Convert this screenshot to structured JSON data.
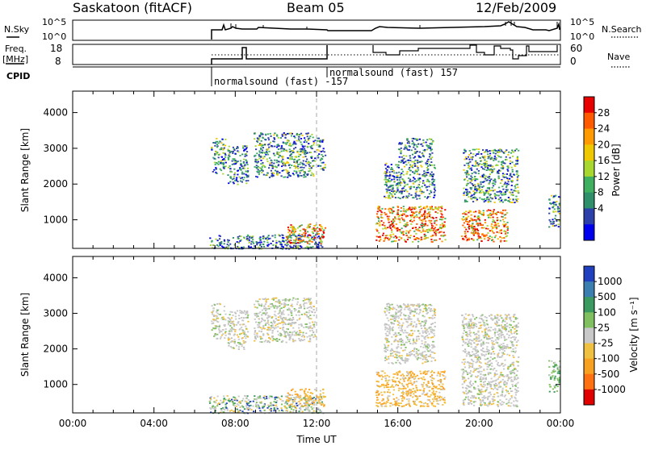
{
  "header": {
    "station": "Saskatoon (fitACF)",
    "beam": "Beam 05",
    "date": "12/Feb/2009"
  },
  "status_panels": {
    "noise": {
      "left_label": "N.Sky",
      "left_ticks": [
        "10^5",
        "10^0"
      ],
      "right_label": "N.Search",
      "right_ticks": [
        "10^5",
        "10^0"
      ]
    },
    "freq": {
      "left_label_1": "Freq.",
      "left_label_2": "[MHz]",
      "left_ticks": [
        "18",
        "8"
      ],
      "right_label": "Nave",
      "right_ticks": [
        "60",
        "0"
      ]
    },
    "cpid": {
      "label": "CPID",
      "entries": [
        {
          "time": 6.75,
          "text": "normalsound (fast) -157"
        },
        {
          "time": 12.25,
          "text": "normalsound (fast) 157"
        }
      ]
    }
  },
  "chart_data": [
    {
      "type": "heatmap",
      "name": "power",
      "ylabel": "Slant Range [km]",
      "ylim": [
        200,
        4600
      ],
      "yticks": [
        1000,
        2000,
        3000,
        4000
      ],
      "xlim": [
        0,
        24
      ],
      "colorbar": {
        "title": "Power [dB]",
        "labels": [
          "28",
          "24",
          "20",
          "16",
          "12",
          "8",
          "4"
        ],
        "colors": [
          "#e80000",
          "#ff5a00",
          "#ff9a00",
          "#f0c800",
          "#a8d830",
          "#3fb060",
          "#2f8f6a",
          "#2d3fa8",
          "#0000ee"
        ]
      },
      "scatter_regions": [
        {
          "t0": 6.8,
          "t1": 7.5,
          "r0": 2300,
          "r1": 3300,
          "palette": "power-mid"
        },
        {
          "t0": 7.6,
          "t1": 8.6,
          "r0": 2000,
          "r1": 3100,
          "palette": "power-low"
        },
        {
          "t0": 8.9,
          "t1": 11.9,
          "r0": 2200,
          "r1": 3450,
          "palette": "power-mid"
        },
        {
          "t0": 12.0,
          "t1": 12.4,
          "r0": 2400,
          "r1": 3300,
          "palette": "power-mid"
        },
        {
          "t0": 6.7,
          "t1": 12.3,
          "r0": 200,
          "r1": 600,
          "palette": "power-low"
        },
        {
          "t0": 10.5,
          "t1": 12.4,
          "r0": 350,
          "r1": 900,
          "palette": "power-hot"
        },
        {
          "t0": 14.9,
          "t1": 18.3,
          "r0": 400,
          "r1": 1400,
          "palette": "power-hot"
        },
        {
          "t0": 15.3,
          "t1": 17.8,
          "r0": 1600,
          "r1": 2600,
          "palette": "power-mid"
        },
        {
          "t0": 16.0,
          "t1": 17.7,
          "r0": 2600,
          "r1": 3300,
          "palette": "power-low"
        },
        {
          "t0": 19.1,
          "t1": 21.4,
          "r0": 400,
          "r1": 1300,
          "palette": "power-hot"
        },
        {
          "t0": 19.2,
          "t1": 21.9,
          "r0": 1500,
          "r1": 3000,
          "palette": "power-mid"
        },
        {
          "t0": 23.4,
          "t1": 23.95,
          "r0": 800,
          "r1": 1700,
          "palette": "power-mid"
        }
      ]
    },
    {
      "type": "heatmap",
      "name": "velocity",
      "ylabel": "Slant Range [km]",
      "ylim": [
        200,
        4600
      ],
      "yticks": [
        1000,
        2000,
        3000,
        4000
      ],
      "xlim": [
        0,
        24
      ],
      "xticks": [
        "00:00",
        "04:00",
        "08:00",
        "12:00",
        "16:00",
        "20:00",
        "00:00"
      ],
      "xlabel": "Time UT",
      "colorbar": {
        "title": "Velocity [m s⁻¹]",
        "labels": [
          "1000",
          "500",
          "100",
          "25",
          "-25",
          "-100",
          "-500",
          "-1000"
        ],
        "colors": [
          "#2040c0",
          "#3a7fb0",
          "#3a9a60",
          "#80c060",
          "#c8c8c8",
          "#f0c040",
          "#f8a020",
          "#ff7010",
          "#e00000"
        ]
      },
      "scatter_regions": [
        {
          "t0": 6.8,
          "t1": 7.5,
          "r0": 2300,
          "r1": 3300,
          "palette": "vel-grey"
        },
        {
          "t0": 7.6,
          "t1": 8.6,
          "r0": 2000,
          "r1": 3100,
          "palette": "vel-grey"
        },
        {
          "t0": 8.9,
          "t1": 11.9,
          "r0": 2200,
          "r1": 3450,
          "palette": "vel-grey"
        },
        {
          "t0": 6.7,
          "t1": 12.3,
          "r0": 200,
          "r1": 700,
          "palette": "vel-mix"
        },
        {
          "t0": 10.5,
          "t1": 12.4,
          "r0": 400,
          "r1": 900,
          "palette": "vel-orange"
        },
        {
          "t0": 14.9,
          "t1": 18.3,
          "r0": 400,
          "r1": 1400,
          "palette": "vel-orange"
        },
        {
          "t0": 15.3,
          "t1": 17.8,
          "r0": 1600,
          "r1": 3300,
          "palette": "vel-grey"
        },
        {
          "t0": 19.1,
          "t1": 21.9,
          "r0": 400,
          "r1": 3000,
          "palette": "vel-grey"
        },
        {
          "t0": 23.4,
          "t1": 23.95,
          "r0": 800,
          "r1": 1700,
          "palette": "vel-green"
        }
      ]
    }
  ]
}
